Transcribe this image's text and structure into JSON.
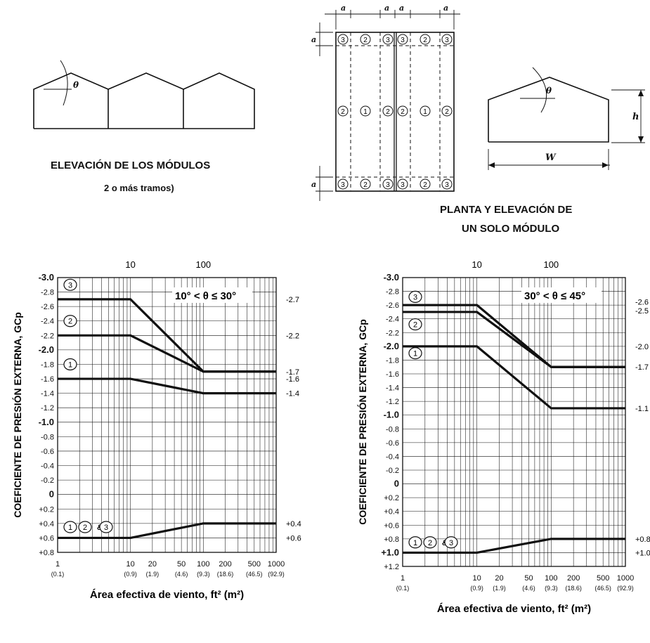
{
  "diagrams": {
    "left_caption_1": "ELEVACIÓN DE LOS MÓDULOS",
    "left_caption_2": "2 o más tramos)",
    "right_caption_1": "PLANTA Y ELEVACIÓN DE",
    "right_caption_2": "UN SOLO MÓDULO",
    "theta": "θ",
    "dim_a": "a",
    "dim_h": "h",
    "dim_w": "W",
    "zone_1": "1",
    "zone_2": "2",
    "zone_3": "3"
  },
  "chart_data": [
    {
      "type": "line",
      "title": "10° < θ ≤ 30°",
      "ylabel": "COEFICIENTE DE PRESIÓN EXTERNA, GCp",
      "xlabel": "Área efectiva de viento, ft² (m²)",
      "x_scale": "log",
      "xlim": [
        1,
        1000
      ],
      "ylim": [
        -3.0,
        0.8
      ],
      "y_inverted": true,
      "grid": true,
      "top_ticks": [
        "10",
        "100"
      ],
      "x_ticks": [
        {
          "x": 1,
          "label": "1",
          "sub": "(0.1)"
        },
        {
          "x": 10,
          "label": "10",
          "sub": "(0.9)"
        },
        {
          "x": 20,
          "label": "20",
          "sub": "(1.9)"
        },
        {
          "x": 50,
          "label": "50",
          "sub": "(4.6)"
        },
        {
          "x": 100,
          "label": "100",
          "sub": "(9.3)"
        },
        {
          "x": 200,
          "label": "200",
          "sub": "(18.6)"
        },
        {
          "x": 500,
          "label": "500",
          "sub": "(46.5)"
        },
        {
          "x": 1000,
          "label": "1000",
          "sub": "(92.9)"
        }
      ],
      "y_tick_labels": [
        "-3.0",
        "-2.8",
        "-2.6",
        "-2.4",
        "-2.2",
        "-2.0",
        "-1.8",
        "-1.6",
        "-1.4",
        "-1.2",
        "-1.0",
        "-0.8",
        "-0.6",
        "-0.4",
        "-0.2",
        "0",
        "+0.2",
        "+0.4",
        "+0.6",
        "+0.8"
      ],
      "series": [
        {
          "name": "3",
          "x": [
            1,
            10,
            100,
            1000
          ],
          "y": [
            -2.7,
            -2.7,
            -1.7,
            -1.7
          ]
        },
        {
          "name": "2",
          "x": [
            1,
            10,
            100,
            1000
          ],
          "y": [
            -2.2,
            -2.2,
            -1.7,
            -1.7
          ]
        },
        {
          "name": "1",
          "x": [
            1,
            10,
            100,
            1000
          ],
          "y": [
            -1.6,
            -1.6,
            -1.4,
            -1.4
          ]
        },
        {
          "name": "1 2 & 3",
          "x": [
            1,
            10,
            100,
            1000
          ],
          "y": [
            0.6,
            0.6,
            0.4,
            0.4
          ]
        }
      ],
      "right_labels": [
        {
          "y": -2.7,
          "text": "-2.7"
        },
        {
          "y": -2.2,
          "text": "-2.2"
        },
        {
          "y": -1.7,
          "text": "-1.7"
        },
        {
          "y": -1.6,
          "text": "-1.6"
        },
        {
          "y": -1.4,
          "text": "-1.4"
        },
        {
          "y": 0.4,
          "text": "+0.4"
        },
        {
          "y": 0.6,
          "text": "+0.6"
        }
      ],
      "curve_labels": [
        {
          "y": -2.9,
          "text": "3"
        },
        {
          "y": -2.4,
          "text": "2"
        },
        {
          "y": -1.8,
          "text": "1"
        },
        {
          "y": 0.45,
          "text": "1 2 & 3"
        }
      ]
    },
    {
      "type": "line",
      "title": "30° < θ ≤ 45°",
      "ylabel": "COEFICIENTE DE PRESIÓN EXTERNA, GCp",
      "xlabel": "Área efectiva de viento, ft² (m²)",
      "x_scale": "log",
      "xlim": [
        1,
        1000
      ],
      "ylim": [
        -3.0,
        1.2
      ],
      "y_inverted": true,
      "grid": true,
      "top_ticks": [
        "10",
        "100"
      ],
      "x_ticks": [
        {
          "x": 1,
          "label": "1",
          "sub": "(0.1)"
        },
        {
          "x": 10,
          "label": "10",
          "sub": "(0.9)"
        },
        {
          "x": 20,
          "label": "20",
          "sub": "(1.9)"
        },
        {
          "x": 50,
          "label": "50",
          "sub": "(4.6)"
        },
        {
          "x": 100,
          "label": "100",
          "sub": "(9.3)"
        },
        {
          "x": 200,
          "label": "200",
          "sub": "(18.6)"
        },
        {
          "x": 500,
          "label": "500",
          "sub": "(46.5)"
        },
        {
          "x": 1000,
          "label": "1000",
          "sub": "(92.9)"
        }
      ],
      "y_tick_labels": [
        "-3.0",
        "-2.8",
        "-2.6",
        "-2.4",
        "-2.2",
        "-2.0",
        "-1.8",
        "-1.6",
        "-1.4",
        "-1.2",
        "-1.0",
        "-0.8",
        "-0.6",
        "-0.4",
        "-0.2",
        "0",
        "+0.2",
        "+0.4",
        "+0.6",
        "+0.8",
        "+1.0",
        "+1.2"
      ],
      "series": [
        {
          "name": "3",
          "x": [
            1,
            10,
            100,
            1000
          ],
          "y": [
            -2.6,
            -2.6,
            -1.7,
            -1.7
          ]
        },
        {
          "name": "2",
          "x": [
            1,
            10,
            100,
            1000
          ],
          "y": [
            -2.5,
            -2.5,
            -1.7,
            -1.7
          ]
        },
        {
          "name": "1",
          "x": [
            1,
            10,
            100,
            1000
          ],
          "y": [
            -2.0,
            -2.0,
            -1.1,
            -1.1
          ]
        },
        {
          "name": "1 2 & 3",
          "x": [
            1,
            10,
            100,
            1000
          ],
          "y": [
            1.0,
            1.0,
            0.8,
            0.8
          ]
        }
      ],
      "right_labels": [
        {
          "y": -2.65,
          "text": "-2.6"
        },
        {
          "y": -2.52,
          "text": "-2.5"
        },
        {
          "y": -2.0,
          "text": "-2.0"
        },
        {
          "y": -1.7,
          "text": "-1.7"
        },
        {
          "y": -1.1,
          "text": "-1.1"
        },
        {
          "y": 0.8,
          "text": "+0.8"
        },
        {
          "y": 1.0,
          "text": "+1.0"
        }
      ],
      "curve_labels": [
        {
          "y": -2.72,
          "text": "3"
        },
        {
          "y": -2.32,
          "text": "2"
        },
        {
          "y": -1.9,
          "text": "1"
        },
        {
          "y": 0.85,
          "text": "1 2 & 3"
        }
      ]
    }
  ]
}
